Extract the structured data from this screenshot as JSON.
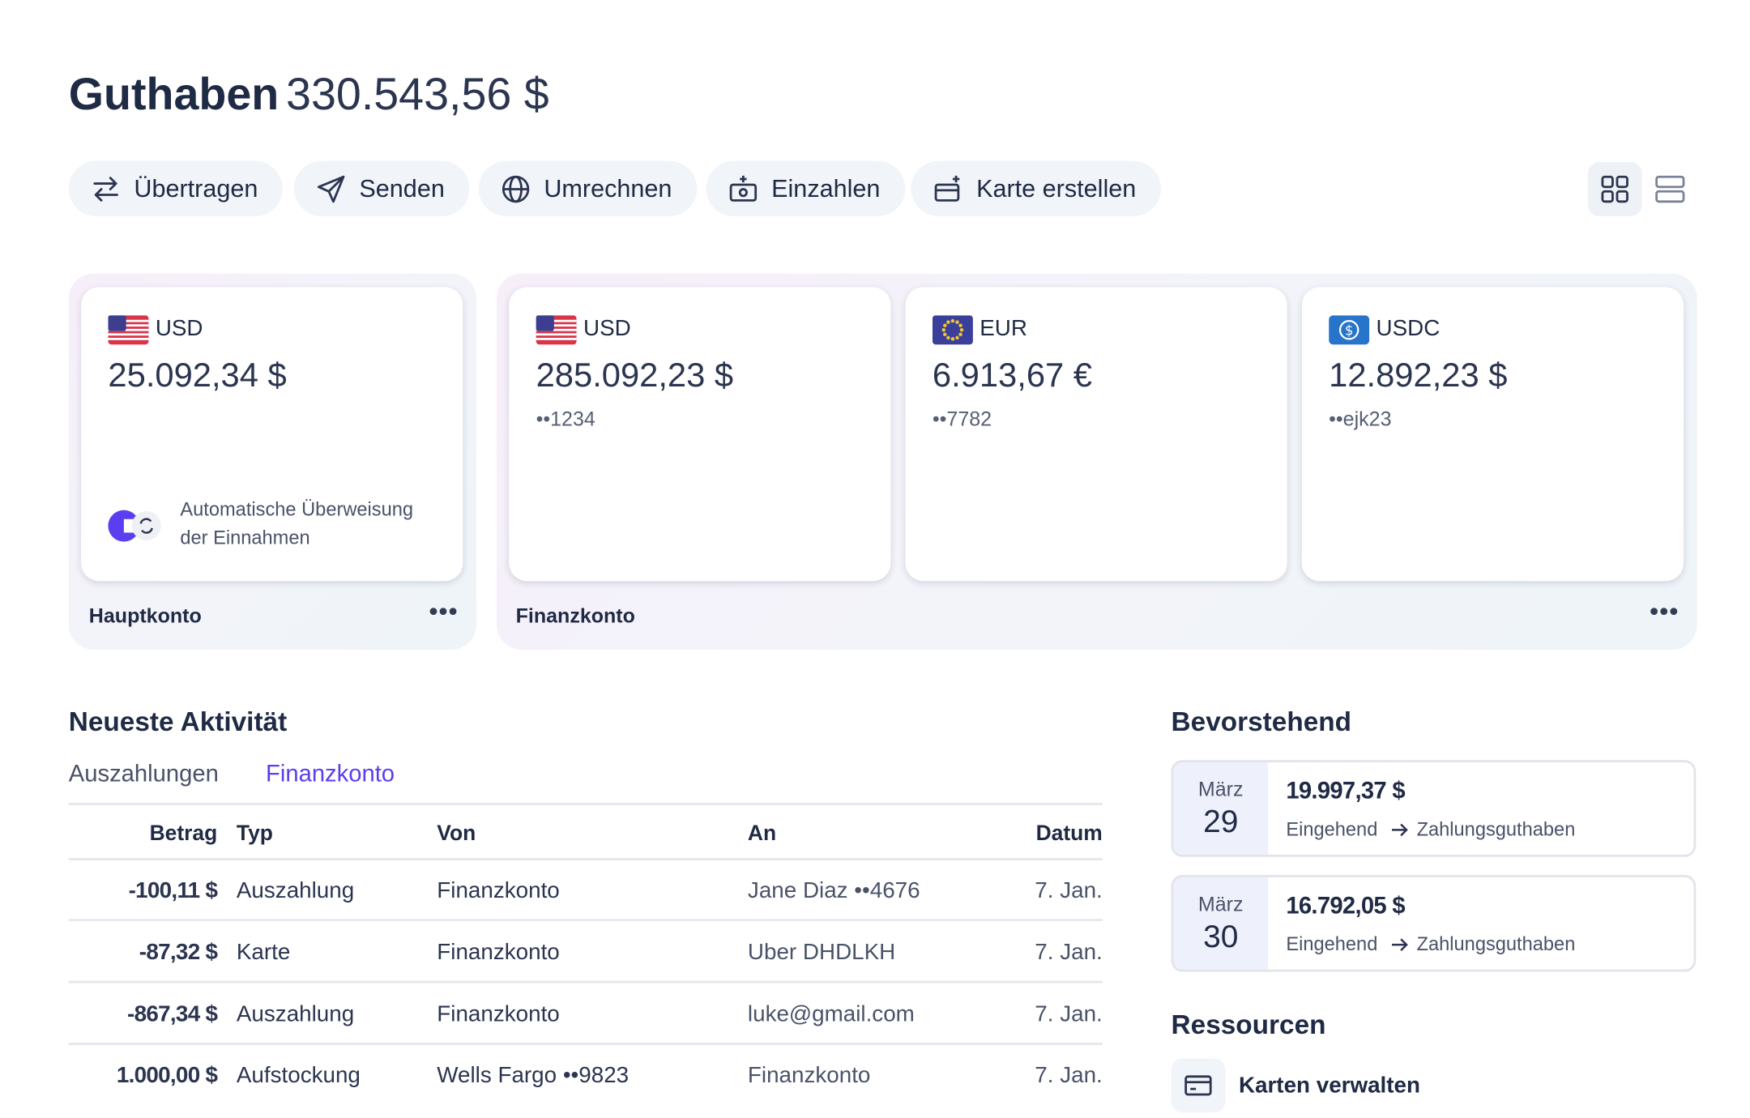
{
  "header": {
    "title": "Guthaben",
    "balance": "330.543,56 $"
  },
  "actions": [
    "Übertragen",
    "Senden",
    "Umrechnen",
    "Einzahlen",
    "Karte erstellen"
  ],
  "accounts": {
    "main": {
      "label": "Hauptkonto",
      "card": {
        "currency": "USD",
        "amount": "25.092,34 $",
        "note_line1": "Automatische Überweisung",
        "note_line2": "der Einnahmen"
      }
    },
    "finance": {
      "label": "Finanzkonto",
      "cards": [
        {
          "currency": "USD",
          "amount": "285.092,23 $",
          "account": "••1234"
        },
        {
          "currency": "EUR",
          "amount": "6.913,67 €",
          "account": "••7782"
        },
        {
          "currency": "USDC",
          "amount": "12.892,23 $",
          "account": "••ejk23"
        }
      ]
    }
  },
  "activity": {
    "title": "Neueste Aktivität",
    "tabs": [
      "Auszahlungen",
      "Finanzkonto"
    ],
    "columns": [
      "Betrag",
      "Typ",
      "Von",
      "An",
      "Datum"
    ],
    "rows": [
      [
        "-100,11 $",
        "Auszahlung",
        "Finanzkonto",
        "Jane Diaz ••4676",
        "7. Jan."
      ],
      [
        "-87,32 $",
        "Karte",
        "Finanzkonto",
        "Uber DHDLKH",
        "7. Jan."
      ],
      [
        "-867,34 $",
        "Auszahlung",
        "Finanzkonto",
        "luke@gmail.com",
        "7. Jan."
      ],
      [
        "1.000,00 $",
        "Aufstockung",
        "Wells Fargo ••9823",
        "Finanzkonto",
        "7. Jan."
      ]
    ]
  },
  "upcoming": {
    "title": "Bevorstehend",
    "items": [
      {
        "month": "März",
        "day": "29",
        "amount": "19.997,37 $",
        "direction": "Eingehend",
        "target": "Zahlungsguthaben"
      },
      {
        "month": "März",
        "day": "30",
        "amount": "16.792,05 $",
        "direction": "Eingehend",
        "target": "Zahlungsguthaben"
      }
    ]
  },
  "resources": {
    "title": "Ressourcen",
    "items": [
      "Karten verwalten"
    ]
  }
}
